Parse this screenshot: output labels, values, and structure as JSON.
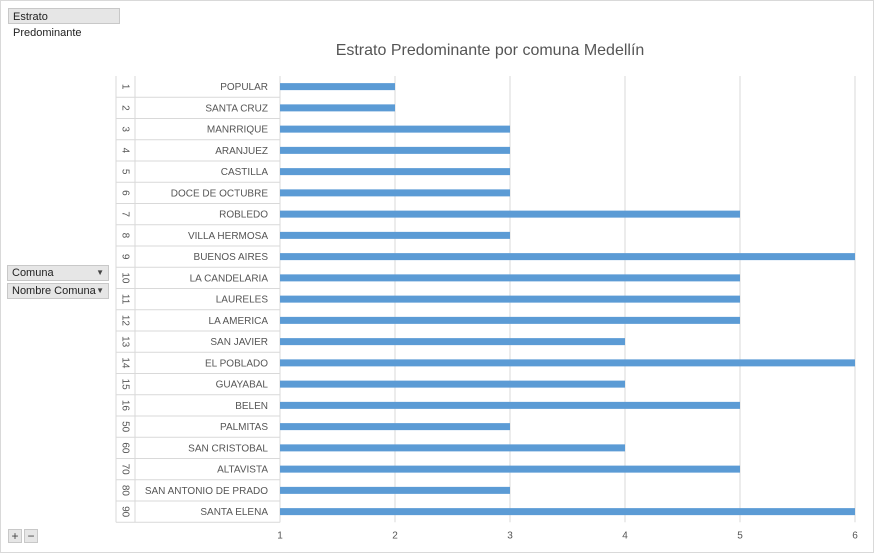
{
  "field_buttons": {
    "value": "Estrato Predominante",
    "row_fields": [
      "Comuna",
      "Nombre Comuna"
    ],
    "dropdown_icon": "chevron-down-icon"
  },
  "zoom": {
    "expand": "+",
    "collapse": "−"
  },
  "chart_data": {
    "type": "bar",
    "orientation": "horizontal",
    "title": "Estrato Predominante por comuna Medellín",
    "xlabel": "",
    "ylabel": "",
    "xlim": [
      1,
      6
    ],
    "xticks": [
      1,
      2,
      3,
      4,
      5,
      6
    ],
    "grid": "vertical",
    "bar_color": "#5b9bd5",
    "codes": [
      "1",
      "2",
      "3",
      "4",
      "5",
      "6",
      "7",
      "8",
      "9",
      "10",
      "11",
      "12",
      "13",
      "14",
      "15",
      "16",
      "50",
      "60",
      "70",
      "80",
      "90"
    ],
    "categories": [
      "POPULAR",
      "SANTA CRUZ",
      "MANRRIQUE",
      "ARANJUEZ",
      "CASTILLA",
      "DOCE DE OCTUBRE",
      "ROBLEDO",
      "VILLA HERMOSA",
      "BUENOS AIRES",
      "LA CANDELARIA",
      "LAURELES",
      "LA AMERICA",
      "SAN JAVIER",
      "EL POBLADO",
      "GUAYABAL",
      "BELEN",
      "PALMITAS",
      "SAN CRISTOBAL",
      "ALTAVISTA",
      "SAN ANTONIO DE PRADO",
      "SANTA ELENA"
    ],
    "values": [
      2,
      2,
      3,
      3,
      3,
      3,
      5,
      3,
      6,
      5,
      5,
      5,
      4,
      6,
      4,
      5,
      3,
      4,
      5,
      3,
      6
    ]
  }
}
